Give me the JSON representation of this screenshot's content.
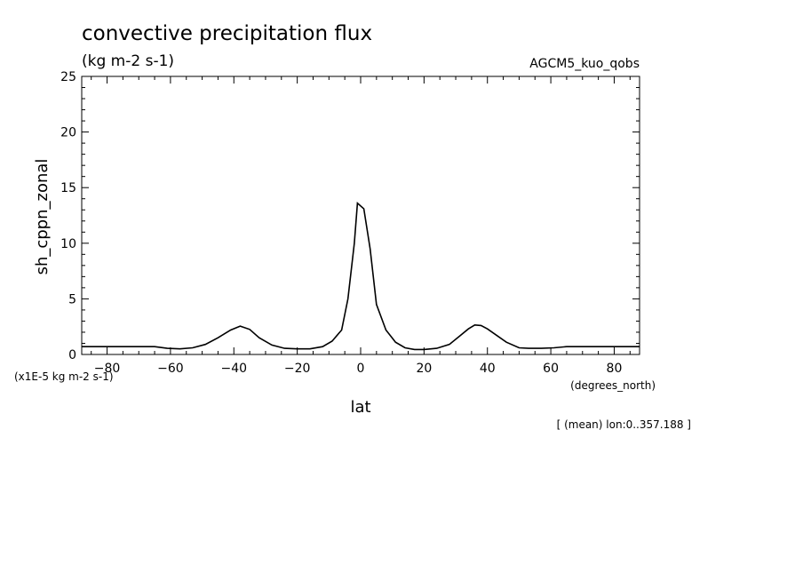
{
  "chart_data": {
    "type": "line",
    "title": "convective precipitation flux",
    "subtitle": "(kg m-2 s-1)",
    "dataset": "AGCM5_kuo_qobs",
    "xlabel": "lat",
    "xunits": "(degrees_north)",
    "ylabel": "sh_cppn_zonal",
    "yscale_note": "(x1E-5 kg m-2 s-1)",
    "footnote": "[ (mean) lon:0..357.188 ]",
    "xlim": [
      -88,
      88
    ],
    "ylim": [
      0,
      25
    ],
    "xticks": [
      -80,
      -60,
      -40,
      -20,
      0,
      20,
      40,
      60,
      80
    ],
    "yticks": [
      0,
      5,
      10,
      15,
      20,
      25
    ],
    "grid": false,
    "series": [
      {
        "x": [
          -88,
          -80,
          -72,
          -65,
          -61,
          -57,
          -53,
          -49,
          -45,
          -41,
          -38,
          -35,
          -32,
          -28,
          -24,
          -20,
          -16,
          -12,
          -9,
          -6,
          -4,
          -2,
          -1,
          1,
          3,
          5,
          8,
          11,
          14,
          17,
          20,
          24,
          28,
          31,
          34,
          36,
          38,
          40,
          43,
          46,
          50,
          53,
          57,
          61,
          65,
          72,
          80,
          88
        ],
        "y": [
          0.7,
          0.7,
          0.7,
          0.7,
          0.55,
          0.5,
          0.6,
          0.9,
          1.5,
          2.2,
          2.55,
          2.25,
          1.5,
          0.85,
          0.55,
          0.5,
          0.5,
          0.7,
          1.2,
          2.2,
          5.0,
          10.0,
          13.6,
          13.1,
          9.5,
          4.5,
          2.2,
          1.1,
          0.6,
          0.45,
          0.45,
          0.55,
          0.9,
          1.6,
          2.3,
          2.65,
          2.6,
          2.3,
          1.7,
          1.1,
          0.6,
          0.55,
          0.55,
          0.6,
          0.7,
          0.7,
          0.7,
          0.7
        ]
      }
    ]
  }
}
